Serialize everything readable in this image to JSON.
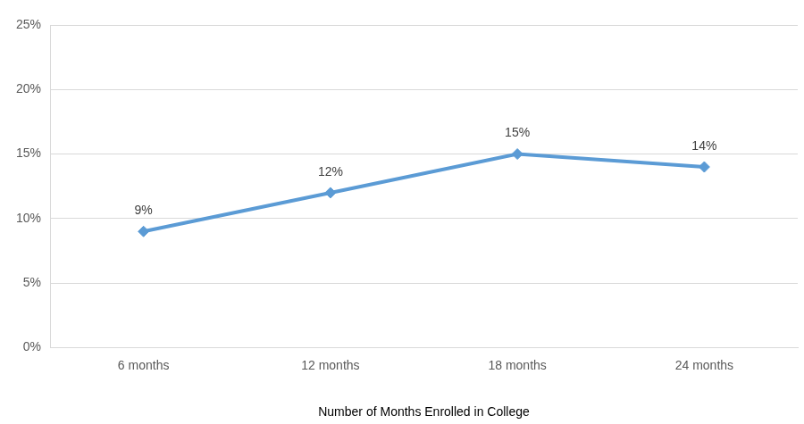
{
  "chart_data": {
    "type": "line",
    "x_label": "Number of Months Enrolled in College",
    "categories": [
      "6 months",
      "12 months",
      "18 months",
      "24 months"
    ],
    "values": [
      9,
      12,
      15,
      14
    ],
    "value_labels": [
      "9%",
      "12%",
      "15%",
      "14%"
    ],
    "color": "#5b9bd5",
    "marker": "diamond",
    "line_style": "solid",
    "data_labels": true,
    "ylim": [
      0,
      25
    ],
    "yticks": [
      {
        "value": 0,
        "label": "0%"
      },
      {
        "value": 5,
        "label": "5%"
      },
      {
        "value": 10,
        "label": "10%"
      },
      {
        "value": 15,
        "label": "15%"
      },
      {
        "value": 20,
        "label": "20%"
      },
      {
        "value": 25,
        "label": "25%"
      }
    ],
    "grid": true
  }
}
